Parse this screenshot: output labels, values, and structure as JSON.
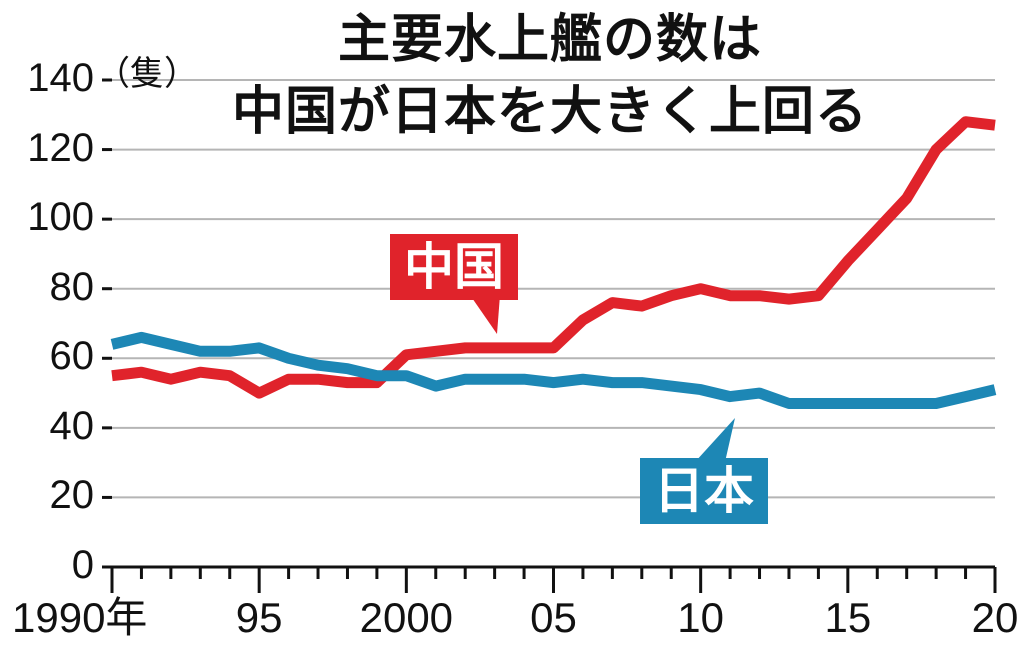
{
  "chart_data": {
    "type": "line",
    "title": [
      "主要水上艦の数は",
      "中国が日本を大きく上回る"
    ],
    "unit": "（隻）",
    "ylim": [
      0,
      140
    ],
    "y_ticks": [
      "0",
      "20",
      "40",
      "60",
      "80",
      "100",
      "120",
      "140"
    ],
    "y_tick_values": [
      0,
      20,
      40,
      60,
      80,
      100,
      120,
      140
    ],
    "xlim": [
      1990,
      2020
    ],
    "x_tick_labels": [
      "1990年",
      "95",
      "2000",
      "05",
      "10",
      "15",
      "20"
    ],
    "x_tick_values": [
      1990,
      1995,
      2000,
      2005,
      2010,
      2015,
      2020
    ],
    "grid": true,
    "x": [
      1990,
      1991,
      1992,
      1993,
      1994,
      1995,
      1996,
      1997,
      1998,
      1999,
      2000,
      2001,
      2002,
      2003,
      2004,
      2005,
      2006,
      2007,
      2008,
      2009,
      2010,
      2011,
      2012,
      2013,
      2014,
      2015,
      2016,
      2017,
      2018,
      2019,
      2020
    ],
    "series": [
      {
        "name": "中国",
        "color": "#e0232b",
        "values": [
          55,
          56,
          54,
          56,
          55,
          50,
          54,
          54,
          53,
          53,
          61,
          62,
          63,
          63,
          63,
          63,
          71,
          76,
          75,
          78,
          80,
          78,
          78,
          77,
          78,
          88,
          97,
          106,
          120,
          128,
          127
        ]
      },
      {
        "name": "日本",
        "color": "#1d87b5",
        "values": [
          64,
          66,
          64,
          62,
          62,
          63,
          60,
          58,
          57,
          55,
          55,
          52,
          54,
          54,
          54,
          53,
          54,
          53,
          53,
          52,
          51,
          49,
          50,
          47,
          47,
          47,
          47,
          47,
          47,
          49,
          51
        ]
      }
    ]
  }
}
